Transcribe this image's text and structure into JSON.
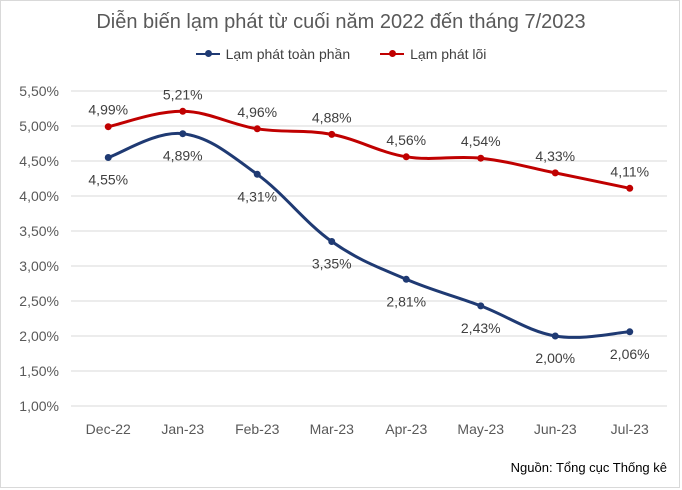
{
  "chart_data": {
    "type": "line",
    "title": "Diễn biến lạm phát từ cuối năm 2022 đến tháng 7/2023",
    "categories": [
      "Dec-22",
      "Jan-23",
      "Feb-23",
      "Mar-23",
      "Apr-23",
      "May-23",
      "Jun-23",
      "Jul-23"
    ],
    "series": [
      {
        "name": "Lạm phát toàn phần",
        "color": "#1f3a73",
        "values": [
          4.55,
          4.89,
          4.31,
          3.35,
          2.81,
          2.43,
          2.0,
          2.06
        ],
        "labels": [
          "4,55%",
          "4,89%",
          "4,31%",
          "3,35%",
          "2,81%",
          "2,43%",
          "2,00%",
          "2,06%"
        ]
      },
      {
        "name": "Lạm phát lõi",
        "color": "#c00000",
        "values": [
          4.99,
          5.21,
          4.96,
          4.88,
          4.56,
          4.54,
          4.33,
          4.11
        ],
        "labels": [
          "4,99%",
          "5,21%",
          "4,96%",
          "4,88%",
          "4,56%",
          "4,54%",
          "4,33%",
          "4,11%"
        ]
      }
    ],
    "y_ticks": [
      "1,00%",
      "1,50%",
      "2,00%",
      "2,50%",
      "3,00%",
      "3,50%",
      "4,00%",
      "4,50%",
      "5,00%",
      "5,50%"
    ],
    "ylim": [
      1.0,
      5.5
    ],
    "grid": true,
    "legend_position": "top-center",
    "source": "Nguồn: Tổng cục Thống kê"
  }
}
